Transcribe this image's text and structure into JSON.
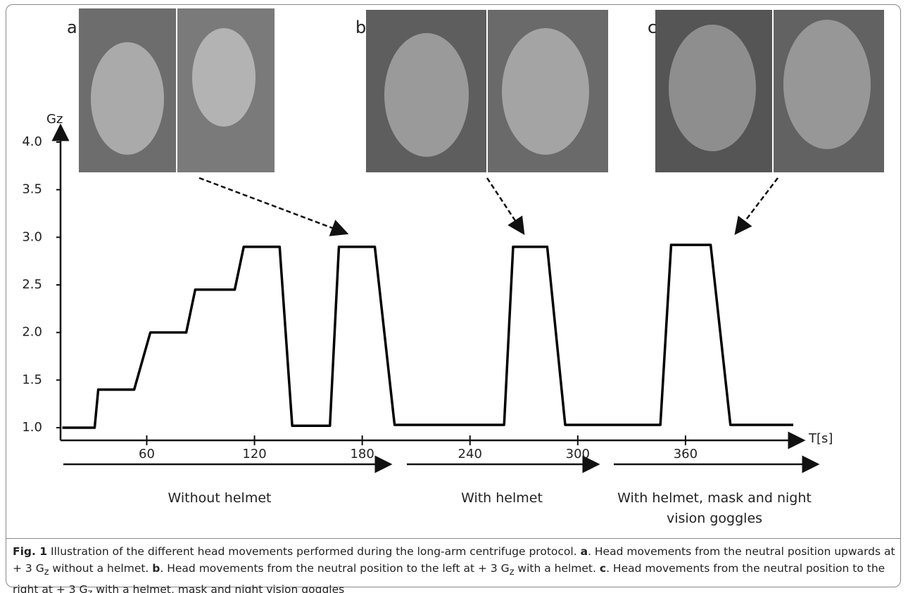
{
  "chart_data": {
    "type": "line",
    "x_label": "T[s]",
    "y_label": "Gz",
    "xlim": [
      12,
      420
    ],
    "ylim": [
      1.0,
      4.0
    ],
    "xticks": [
      60,
      120,
      180,
      240,
      300,
      360
    ],
    "yticks": [
      {
        "value": 1.0,
        "label": "1.0"
      },
      {
        "value": 1.5,
        "label": "1.5"
      },
      {
        "value": 2.0,
        "label": "2.0"
      },
      {
        "value": 2.5,
        "label": "2.5"
      },
      {
        "value": 3.0,
        "label": "3.0"
      },
      {
        "value": 3.5,
        "label": "3.5"
      },
      {
        "value": 4.0,
        "label": "4.0"
      }
    ],
    "series": [
      {
        "color": "#000000",
        "x": [
          13,
          31,
          33,
          53,
          62,
          82,
          87,
          109,
          114,
          134,
          141,
          162,
          167,
          187,
          198,
          259,
          264,
          283,
          293,
          346,
          352,
          374,
          385,
          420
        ],
        "values": [
          1.0,
          1.0,
          1.4,
          1.4,
          2.0,
          2.0,
          2.45,
          2.45,
          2.9,
          2.9,
          1.02,
          1.02,
          2.9,
          2.9,
          1.03,
          1.03,
          2.9,
          2.9,
          1.03,
          1.03,
          2.92,
          2.92,
          1.03,
          1.03
        ]
      }
    ],
    "panels": [
      "a",
      "b",
      "c"
    ],
    "phases": [
      "Without helmet",
      "With helmet",
      "With helmet, mask and night vision goggles"
    ]
  },
  "caption": {
    "label": "Fig. 1",
    "text": " Illustration of the different head movements performed during the long-arm centrifuge protocol. ",
    "items": [
      {
        "letter": "a",
        "parts": [
          ". Head movements from the neutral position upwards at + 3 G",
          "z",
          " without a helmet. "
        ]
      },
      {
        "letter": "b",
        "parts": [
          ". Head movements from the neutral position to the left at + 3 G",
          "z",
          " with a helmet. "
        ]
      },
      {
        "letter": "c",
        "parts": [
          ". Head movements from the neutral position to the right at + 3 G",
          "z",
          " with a helmet, mask and night vision goggles"
        ]
      }
    ]
  }
}
